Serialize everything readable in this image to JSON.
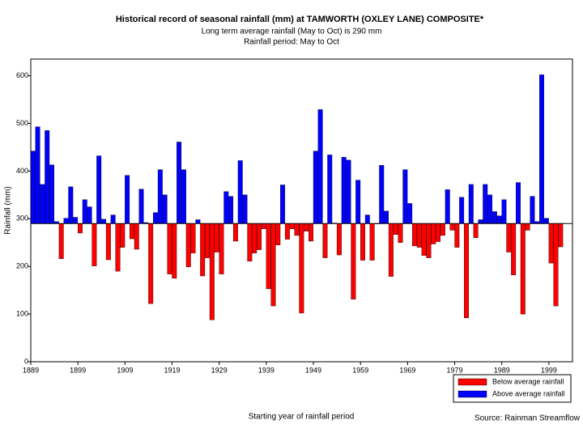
{
  "chart_data": {
    "type": "bar",
    "title": "Historical record of seasonal rainfall (mm) at TAMWORTH (OXLEY LANE) COMPOSITE*",
    "subtitle": "Long term average rainfall (May to Oct) is 290 mm",
    "period": "Rainfall period: May to Oct",
    "xlabel": "Starting year of rainfall period",
    "ylabel": "Rainfall (mm)",
    "source": "Source: Rainman Streamflow",
    "baseline": 290,
    "legend": "below-right",
    "xlim": [
      1889,
      2004
    ],
    "xticks": [
      1889,
      1899,
      1909,
      1919,
      1929,
      1939,
      1949,
      1959,
      1969,
      1979,
      1989,
      1999
    ],
    "ylim": [
      0,
      635
    ],
    "yticks": [
      0,
      100,
      200,
      300,
      400,
      500,
      600
    ],
    "x": [
      1889,
      1890,
      1891,
      1892,
      1893,
      1894,
      1895,
      1896,
      1897,
      1898,
      1899,
      1900,
      1901,
      1902,
      1903,
      1904,
      1905,
      1906,
      1907,
      1908,
      1909,
      1910,
      1911,
      1912,
      1913,
      1914,
      1915,
      1916,
      1917,
      1918,
      1919,
      1920,
      1921,
      1922,
      1923,
      1924,
      1925,
      1926,
      1927,
      1928,
      1929,
      1930,
      1931,
      1932,
      1933,
      1934,
      1935,
      1936,
      1937,
      1938,
      1939,
      1940,
      1941,
      1942,
      1943,
      1944,
      1945,
      1946,
      1947,
      1948,
      1949,
      1950,
      1951,
      1952,
      1953,
      1954,
      1955,
      1956,
      1957,
      1958,
      1959,
      1960,
      1961,
      1962,
      1963,
      1964,
      1965,
      1966,
      1967,
      1968,
      1969,
      1970,
      1971,
      1972,
      1973,
      1974,
      1975,
      1976,
      1977,
      1978,
      1979,
      1980,
      1981,
      1982,
      1983,
      1984,
      1985,
      1986,
      1987,
      1988,
      1989,
      1990,
      1991,
      1992,
      1993,
      1994,
      1995,
      1996,
      1997,
      1998,
      1999,
      2000,
      2001
    ],
    "series": [
      {
        "name": "Below average rainfall",
        "color": "#ff0000",
        "values": [
          null,
          null,
          null,
          null,
          null,
          null,
          216,
          null,
          null,
          null,
          270,
          null,
          null,
          201,
          null,
          null,
          214,
          null,
          190,
          240,
          null,
          258,
          236,
          null,
          null,
          122,
          null,
          null,
          null,
          184,
          175,
          null,
          null,
          199,
          228,
          null,
          180,
          218,
          88,
          230,
          184,
          null,
          null,
          253,
          null,
          null,
          211,
          228,
          235,
          279,
          153,
          117,
          245,
          null,
          257,
          279,
          265,
          102,
          274,
          253,
          null,
          null,
          218,
          null,
          null,
          224,
          null,
          null,
          131,
          null,
          213,
          null,
          213,
          289,
          null,
          null,
          179,
          267,
          250,
          null,
          null,
          243,
          240,
          223,
          218,
          247,
          252,
          265,
          null,
          276,
          240,
          null,
          92,
          null,
          260,
          null,
          null,
          null,
          null,
          null,
          null,
          230,
          182,
          null,
          100,
          276,
          null,
          null,
          null,
          null,
          207,
          117,
          241
        ]
      },
      {
        "name": "Above average rainfall",
        "color": "#0000ff",
        "values": [
          442,
          493,
          372,
          485,
          413,
          294,
          null,
          301,
          367,
          303,
          null,
          340,
          325,
          null,
          432,
          299,
          null,
          308,
          null,
          null,
          391,
          null,
          null,
          362,
          292,
          null,
          313,
          403,
          350,
          null,
          null,
          461,
          403,
          null,
          null,
          298,
          null,
          null,
          null,
          null,
          null,
          357,
          347,
          null,
          422,
          350,
          null,
          null,
          null,
          null,
          null,
          null,
          null,
          371,
          null,
          null,
          null,
          null,
          null,
          null,
          442,
          529,
          null,
          434,
          291,
          null,
          429,
          423,
          null,
          381,
          null,
          308,
          null,
          null,
          412,
          316,
          null,
          null,
          null,
          403,
          332,
          null,
          null,
          null,
          null,
          null,
          null,
          null,
          361,
          null,
          null,
          345,
          null,
          372,
          null,
          298,
          372,
          350,
          315,
          306,
          340,
          null,
          null,
          376,
          null,
          null,
          347,
          294,
          602,
          301,
          null,
          null,
          null
        ]
      }
    ]
  }
}
